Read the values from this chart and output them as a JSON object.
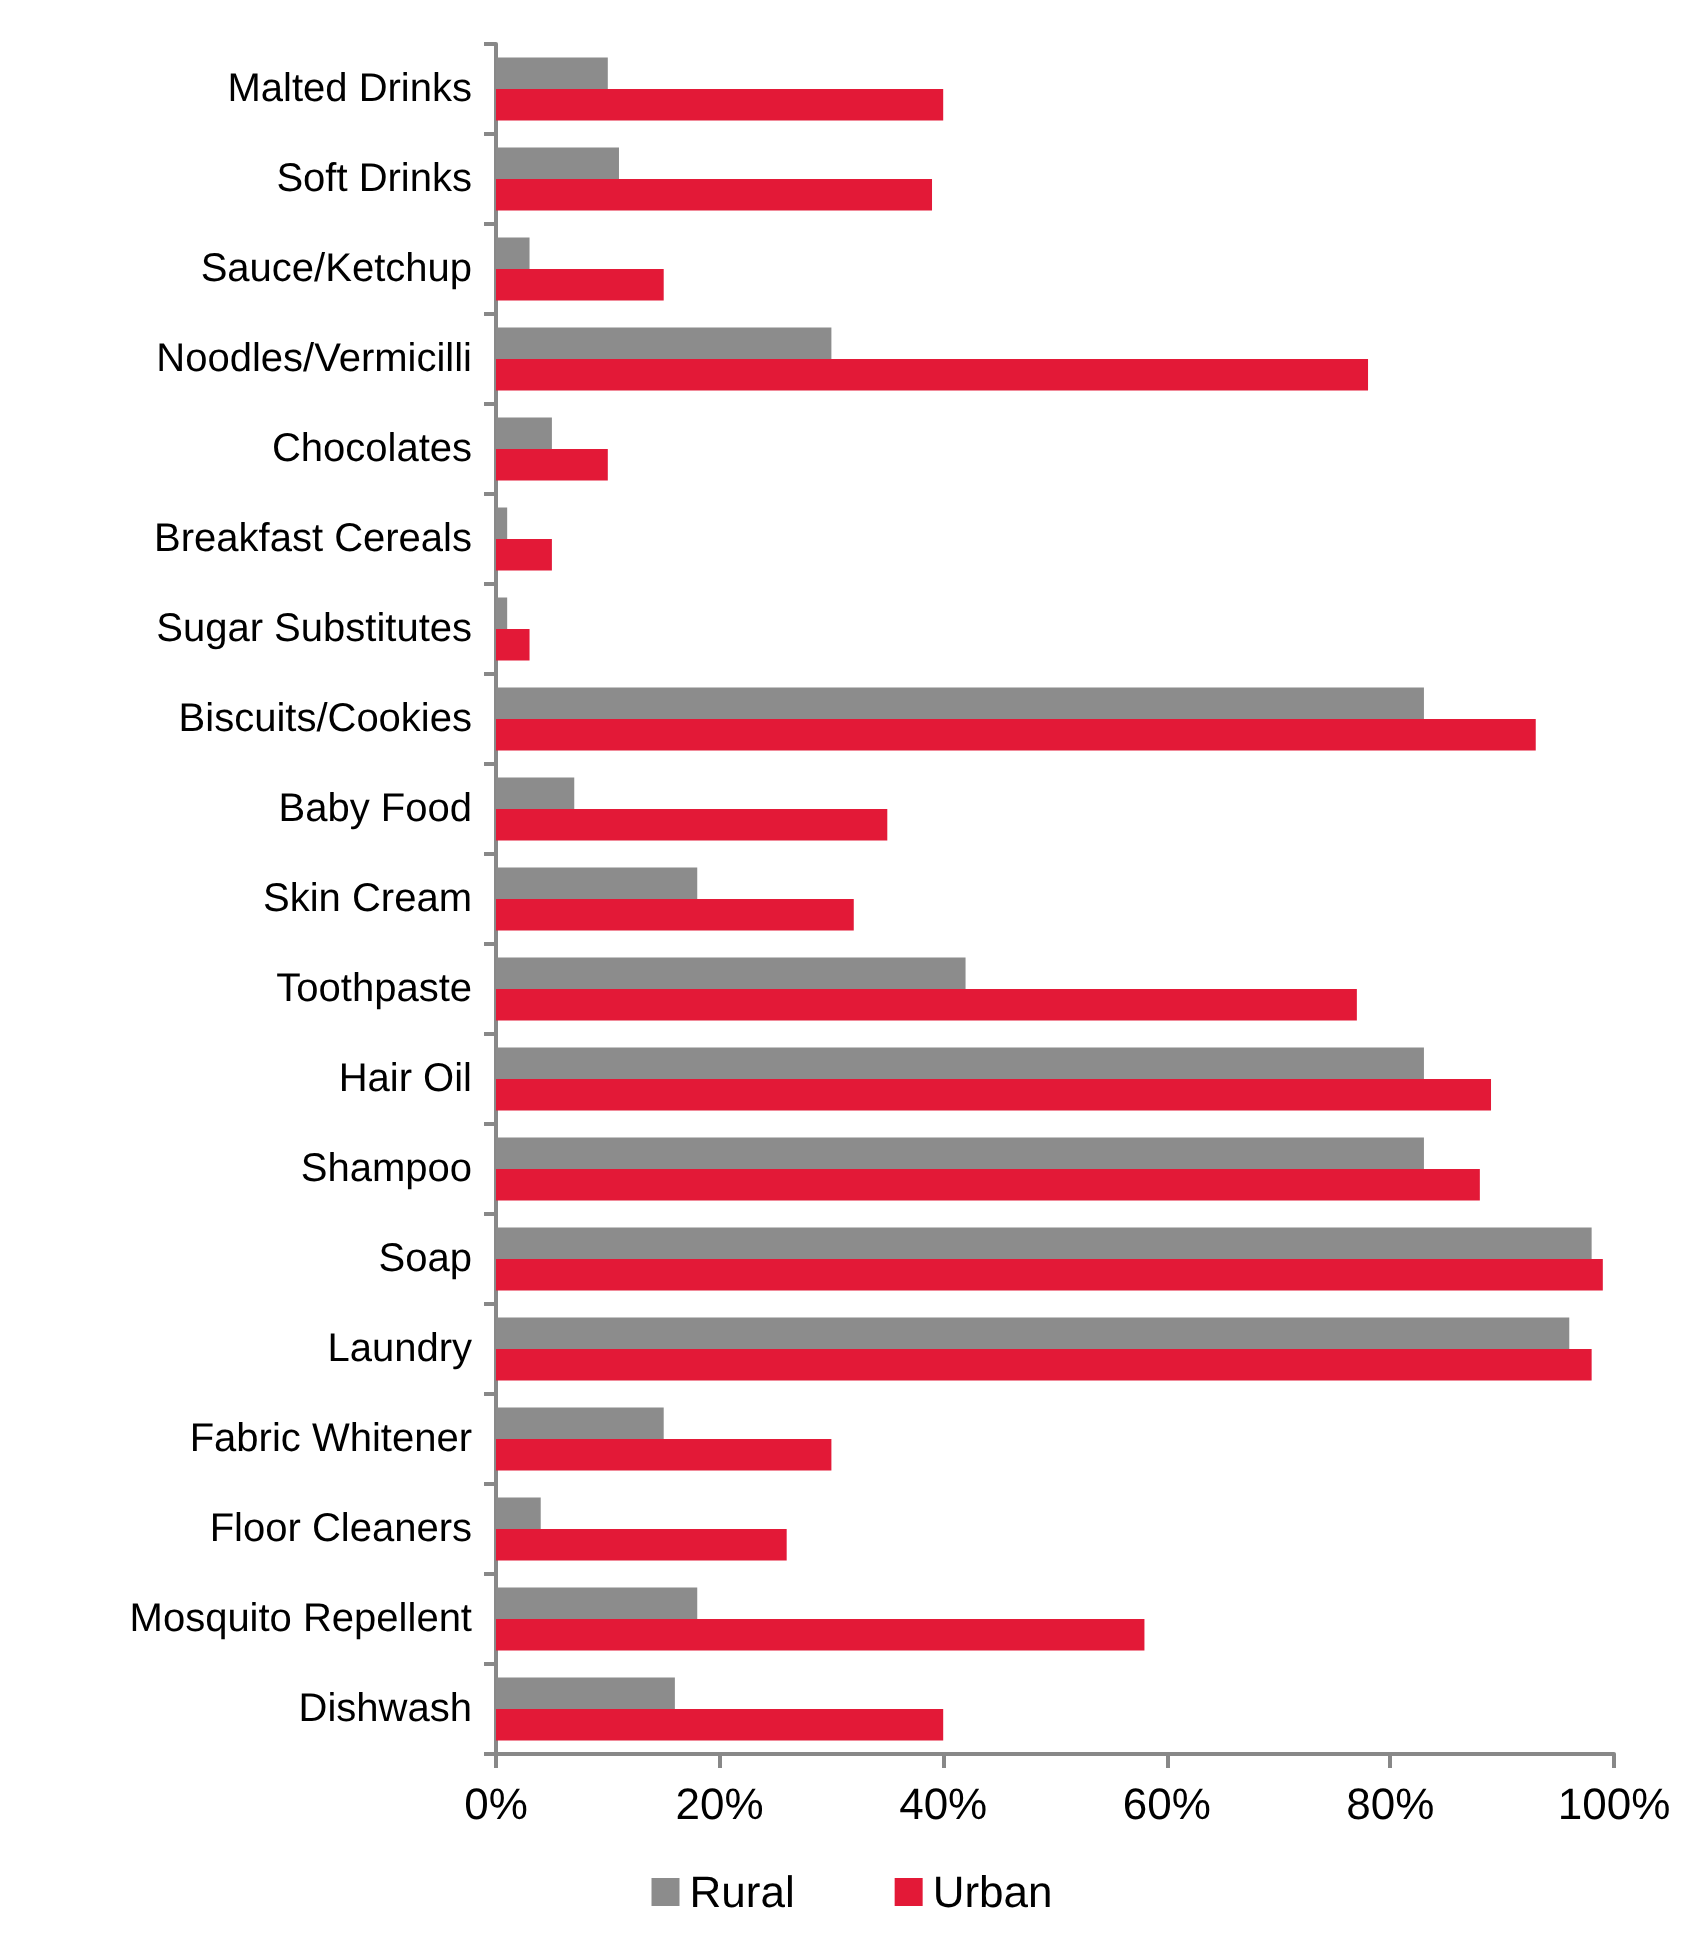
{
  "chart_data": {
    "type": "bar",
    "orientation": "horizontal",
    "categories": [
      "Malted Drinks",
      "Soft Drinks",
      "Sauce/Ketchup",
      "Noodles/Vermicilli",
      "Chocolates",
      "Breakfast Cereals",
      "Sugar Substitutes",
      "Biscuits/Cookies",
      "Baby Food",
      "Skin Cream",
      "Toothpaste",
      "Hair Oil",
      "Shampoo",
      "Soap",
      "Laundry",
      "Fabric Whitener",
      "Floor Cleaners",
      "Mosquito Repellent",
      "Dishwash"
    ],
    "series": [
      {
        "name": "Rural",
        "color": "#8c8c8c",
        "values": [
          10,
          11,
          3,
          30,
          5,
          1,
          1,
          83,
          7,
          18,
          42,
          83,
          83,
          98,
          96,
          15,
          4,
          18,
          16
        ]
      },
      {
        "name": "Urban",
        "color": "#e31937",
        "values": [
          40,
          39,
          15,
          78,
          10,
          5,
          3,
          93,
          35,
          32,
          77,
          89,
          88,
          99,
          98,
          30,
          26,
          58,
          40
        ]
      }
    ],
    "xlim": [
      0,
      100
    ],
    "xticks": [
      {
        "value": 0,
        "label": "0%"
      },
      {
        "value": 20,
        "label": "20%"
      },
      {
        "value": 40,
        "label": "40%"
      },
      {
        "value": 60,
        "label": "60%"
      },
      {
        "value": 80,
        "label": "80%"
      },
      {
        "value": 100,
        "label": "100%"
      }
    ],
    "grid": false,
    "legend": "bottom"
  }
}
